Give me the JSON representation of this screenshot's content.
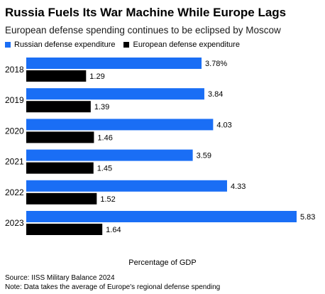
{
  "chart_data": {
    "type": "bar",
    "orientation": "horizontal",
    "title": "Russia Fuels Its War Machine While Europe Lags",
    "subtitle": "European defense spending continues to be eclipsed by Moscow",
    "xlabel": "Percentage of GDP",
    "categories": [
      "2018",
      "2019",
      "2020",
      "2021",
      "2022",
      "2023"
    ],
    "series": [
      {
        "name": "Russian defense expenditure",
        "color": "#1a6ef5",
        "values": [
          3.78,
          3.84,
          4.03,
          3.59,
          4.33,
          5.83
        ],
        "labels": [
          "3.78%",
          "3.84",
          "4.03",
          "3.59",
          "4.33",
          "5.83"
        ]
      },
      {
        "name": "European defense expenditure",
        "color": "#000000",
        "values": [
          1.29,
          1.39,
          1.46,
          1.45,
          1.52,
          1.64
        ],
        "labels": [
          "1.29",
          "1.39",
          "1.46",
          "1.45",
          "1.52",
          "1.64"
        ]
      }
    ],
    "xlim": [
      0,
      5.83
    ],
    "grid": false,
    "legend": "top-left"
  },
  "footer": {
    "source": "Source: IISS Military Balance 2024",
    "note": "Note: Data takes the average of Europe's regional defense spending"
  }
}
